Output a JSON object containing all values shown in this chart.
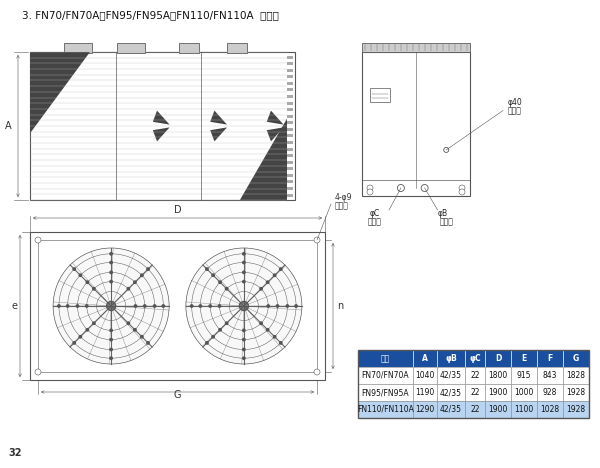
{
  "title": "3. FN70/FN70A、FN95/FN95A、FN110/FN110A  外形图",
  "page_number": "32",
  "bg": "#ffffff",
  "line_color": "#555555",
  "table": {
    "header": [
      "型号",
      "A",
      "φB",
      "φC",
      "D",
      "E",
      "F",
      "G"
    ],
    "header_bg": "#1a4fa0",
    "header_fg": "#ffffff",
    "rows": [
      [
        "FN70/FN70A",
        "1040",
        "42/35",
        "22",
        "1800",
        "915",
        "843",
        "1828"
      ],
      [
        "FN95/FN95A",
        "1190",
        "42/35",
        "22",
        "1900",
        "1000",
        "928",
        "1928"
      ],
      [
        "FN110/FN110A",
        "1290",
        "42/35",
        "22",
        "1900",
        "1100",
        "1028",
        "1928"
      ]
    ],
    "row_colors": [
      "#ffffff",
      "#cce0ff",
      "#ddeeff"
    ]
  }
}
